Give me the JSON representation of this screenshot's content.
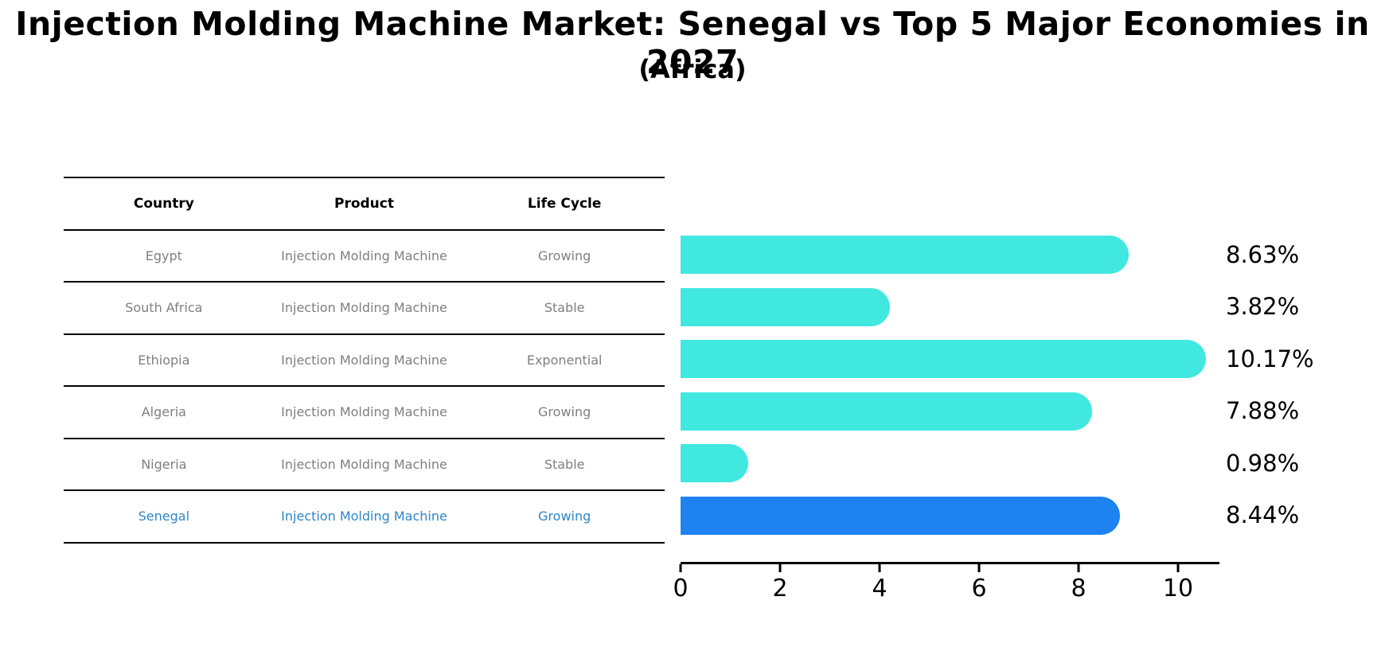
{
  "title": "Injection Molding Machine Market: Senegal vs Top 5 Major Economies in 2027",
  "subtitle": "(Africa)",
  "table": {
    "headers": [
      "Country",
      "Product",
      "Life Cycle"
    ],
    "rows": [
      {
        "country": "Egypt",
        "product": "Injection Molding Machine",
        "life_cycle": "Growing",
        "highlight": false
      },
      {
        "country": "South Africa",
        "product": "Injection Molding Machine",
        "life_cycle": "Stable",
        "highlight": false
      },
      {
        "country": "Ethiopia",
        "product": "Injection Molding Machine",
        "life_cycle": "Exponential",
        "highlight": false
      },
      {
        "country": "Algeria",
        "product": "Injection Molding Machine",
        "life_cycle": "Growing",
        "highlight": false
      },
      {
        "country": "Nigeria",
        "product": "Injection Molding Machine",
        "life_cycle": "Stable",
        "highlight": false
      },
      {
        "country": "Senegal",
        "product": "Injection Molding Machine",
        "life_cycle": "Growing",
        "highlight": true
      }
    ]
  },
  "chart_data": {
    "type": "bar",
    "orientation": "horizontal",
    "categories": [
      "Egypt",
      "South Africa",
      "Ethiopia",
      "Algeria",
      "Nigeria",
      "Senegal"
    ],
    "values": [
      8.63,
      3.82,
      10.17,
      7.88,
      0.98,
      8.44
    ],
    "value_labels": [
      "8.63%",
      "3.82%",
      "10.17%",
      "7.88%",
      "0.98%",
      "8.44%"
    ],
    "highlight_category": "Senegal",
    "xlabel": "",
    "ylabel": "",
    "xlim": [
      0,
      10.83
    ],
    "x_ticks": [
      0,
      2,
      4,
      6,
      8,
      10
    ],
    "grid": false,
    "legend": false,
    "bar_color": "#40E8E0",
    "highlight_bar_color": "#1E82F0"
  },
  "colors": {
    "row_text": "#7f7f7f",
    "highlight_text": "#2E86C8",
    "header_text": "#000000",
    "axis": "#000000"
  }
}
